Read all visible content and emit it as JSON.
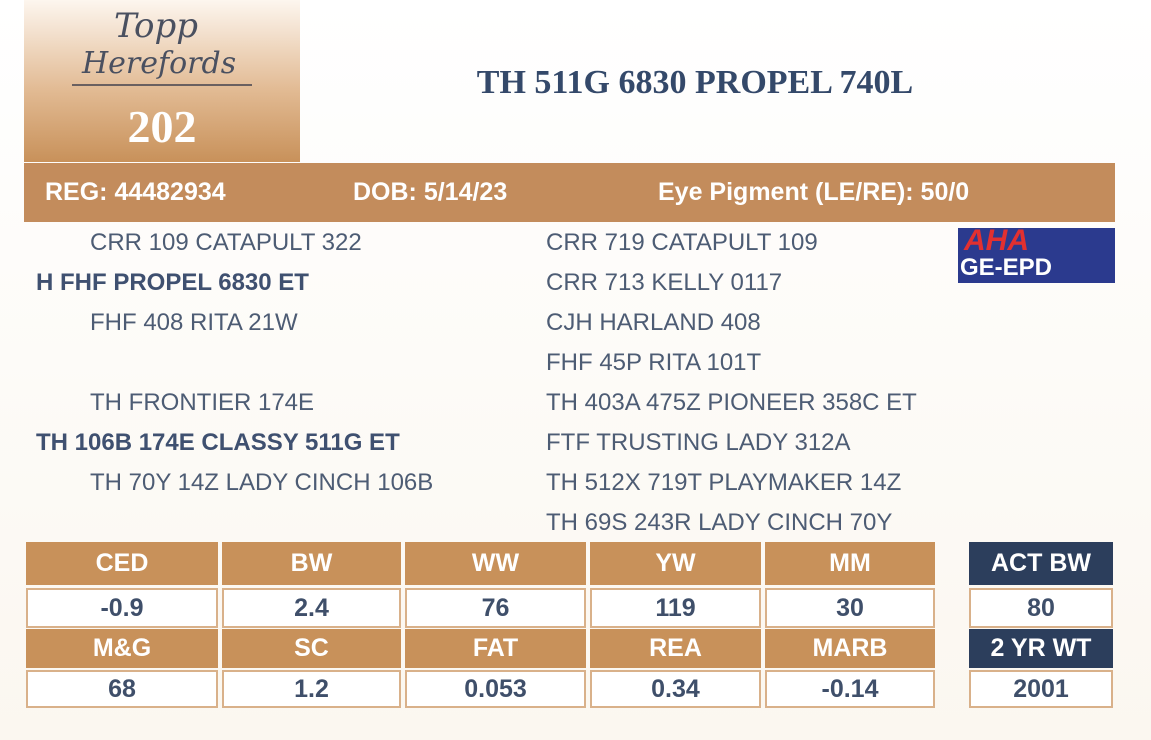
{
  "logo": {
    "line1": "Topp",
    "line2": "Herefords"
  },
  "lot": "202",
  "title": "TH 511G 6830 PROPEL 740L",
  "info": [
    "REG: 44482934",
    "DOB: 5/14/23",
    "Eye Pigment (LE/RE): 50/0"
  ],
  "pedigree": {
    "sire": {
      "sire": "CRR 109 CATAPULT 322",
      "name": "H FHF PROPEL 6830 ET",
      "dam": "FHF 408 RITA 21W"
    },
    "dam": {
      "sire": "TH FRONTIER 174E",
      "name": "TH 106B 174E CLASSY 511G ET",
      "dam": "TH 70Y 14Z LADY CINCH 106B"
    },
    "grandparents": [
      "CRR 719 CATAPULT 109",
      "CRR 713 KELLY 0117",
      "CJH HARLAND 408",
      "FHF 45P RITA 101T",
      "TH 403A 475Z PIONEER 358C ET",
      "FTF TRUSTING LADY 312A",
      "TH 512X 719T PLAYMAKER 14Z",
      "TH 69S 243R LADY CINCH 70Y"
    ]
  },
  "badge": {
    "line1": "AHA",
    "line2": "GE-EPD"
  },
  "epd": {
    "headers": [
      [
        "CED",
        "BW",
        "WW",
        "YW",
        "MM"
      ],
      [
        "M&G",
        "SC",
        "FAT",
        "REA",
        "MARB"
      ]
    ],
    "values": [
      [
        -0.9,
        2.4,
        76,
        119,
        30
      ],
      [
        68,
        1.2,
        0.053,
        0.34,
        -0.14
      ]
    ]
  },
  "actual": {
    "headers": [
      "ACT BW",
      "2 YR WT"
    ],
    "values": [
      80,
      2001
    ]
  }
}
